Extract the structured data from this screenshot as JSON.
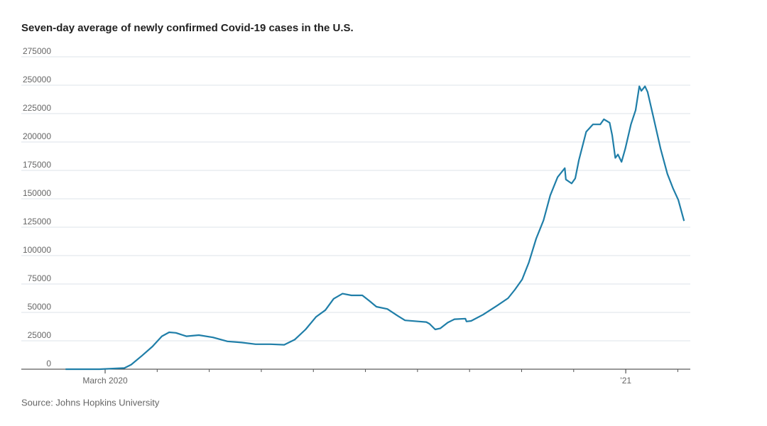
{
  "chart_data": {
    "type": "line",
    "title": "Seven-day average of newly confirmed Covid-19 cases in the U.S.",
    "source": "Source: Johns Hopkins University",
    "x": [
      2.24,
      2.89,
      3.37,
      3.5,
      3.71,
      3.91,
      4.09,
      4.23,
      4.36,
      4.56,
      4.8,
      5.07,
      5.35,
      5.62,
      5.89,
      6.17,
      6.44,
      6.64,
      6.85,
      7.05,
      7.23,
      7.39,
      7.56,
      7.73,
      7.94,
      8.08,
      8.21,
      8.42,
      8.62,
      8.76,
      9.03,
      9.17,
      9.23,
      9.34,
      9.44,
      9.58,
      9.71,
      9.92,
      9.94,
      10.03,
      10.26,
      10.53,
      10.74,
      10.87,
      11.01,
      11.14,
      11.28,
      11.42,
      11.55,
      11.69,
      11.83,
      11.85,
      11.96,
      12.03,
      12.1,
      12.24,
      12.37,
      12.51,
      12.58,
      12.69,
      12.74,
      12.8,
      12.85,
      12.92,
      12.99,
      13.1,
      13.19,
      13.26,
      13.3,
      13.37,
      13.42,
      13.53,
      13.67,
      13.8,
      13.91,
      14.01,
      14.12
    ],
    "series": [
      {
        "color": "#1f7ea8",
        "values": [
          0,
          0,
          1000,
          4000,
          12000,
          20000,
          29000,
          32500,
          32000,
          29000,
          30000,
          28000,
          24500,
          23500,
          22000,
          22000,
          21500,
          26000,
          35000,
          46000,
          52000,
          62000,
          66500,
          65000,
          65000,
          60000,
          55000,
          53000,
          47000,
          43000,
          42000,
          41500,
          40000,
          35000,
          36000,
          41000,
          44000,
          44500,
          42000,
          42500,
          48000,
          56000,
          62500,
          70000,
          79000,
          94000,
          115000,
          131000,
          153000,
          169000,
          177000,
          167000,
          163500,
          168000,
          184000,
          209000,
          215500,
          215500,
          220000,
          217000,
          206000,
          186000,
          189000,
          182500,
          194000,
          215500,
          228000,
          249000,
          245000,
          249000,
          244000,
          222000,
          194000,
          172000,
          159000,
          149000,
          130500
        ]
      }
    ],
    "xlim": [
      1.39,
      14.24
    ],
    "xticks": [
      {
        "value": 3,
        "label": "March 2020"
      },
      {
        "value": 13,
        "label": "’21"
      }
    ],
    "xminorticks": [
      4,
      5,
      6,
      7,
      8,
      9,
      10,
      11,
      12,
      14
    ],
    "ylim": [
      0,
      275000
    ],
    "yticks": [
      0,
      25000,
      50000,
      75000,
      100000,
      125000,
      150000,
      175000,
      200000,
      225000,
      250000,
      275000
    ],
    "grid": true
  }
}
